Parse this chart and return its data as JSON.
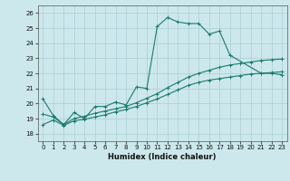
{
  "title": "",
  "xlabel": "Humidex (Indice chaleur)",
  "background_color": "#cce8ec",
  "grid_color": "#aacdd4",
  "line_color": "#1a7a6e",
  "xlim": [
    -0.5,
    23.5
  ],
  "ylim": [
    17.5,
    26.5
  ],
  "xticks": [
    0,
    1,
    2,
    3,
    4,
    5,
    6,
    7,
    8,
    9,
    10,
    11,
    12,
    13,
    14,
    15,
    16,
    17,
    18,
    19,
    20,
    21,
    22,
    23
  ],
  "yticks": [
    18,
    19,
    20,
    21,
    22,
    23,
    24,
    25,
    26
  ],
  "series": [
    {
      "x": [
        0,
        1,
        2,
        3,
        4,
        5,
        6,
        7,
        8,
        9,
        10,
        11,
        12,
        13,
        14,
        15,
        16,
        17,
        18,
        21,
        22,
        23
      ],
      "y": [
        20.3,
        19.2,
        18.6,
        19.4,
        19.0,
        19.8,
        19.8,
        20.1,
        19.9,
        21.1,
        21.0,
        25.1,
        25.7,
        25.4,
        25.3,
        25.3,
        24.6,
        24.8,
        23.2,
        22.0,
        22.0,
        21.9
      ]
    },
    {
      "x": [
        0,
        1,
        2,
        3,
        4,
        5,
        6,
        7,
        8,
        9,
        10,
        11,
        12,
        13,
        14,
        15,
        16,
        17,
        18,
        19,
        20,
        21,
        22,
        23
      ],
      "y": [
        19.3,
        19.1,
        18.6,
        19.0,
        19.15,
        19.35,
        19.5,
        19.65,
        19.8,
        20.05,
        20.35,
        20.65,
        21.05,
        21.4,
        21.75,
        22.0,
        22.2,
        22.4,
        22.55,
        22.65,
        22.75,
        22.85,
        22.9,
        22.95
      ]
    },
    {
      "x": [
        0,
        1,
        2,
        3,
        4,
        5,
        6,
        7,
        8,
        9,
        10,
        11,
        12,
        13,
        14,
        15,
        16,
        17,
        18,
        19,
        20,
        21,
        22,
        23
      ],
      "y": [
        18.6,
        18.9,
        18.55,
        18.85,
        18.95,
        19.1,
        19.25,
        19.45,
        19.6,
        19.8,
        20.05,
        20.3,
        20.6,
        20.9,
        21.2,
        21.4,
        21.55,
        21.65,
        21.75,
        21.85,
        21.95,
        22.0,
        22.05,
        22.1
      ]
    }
  ]
}
